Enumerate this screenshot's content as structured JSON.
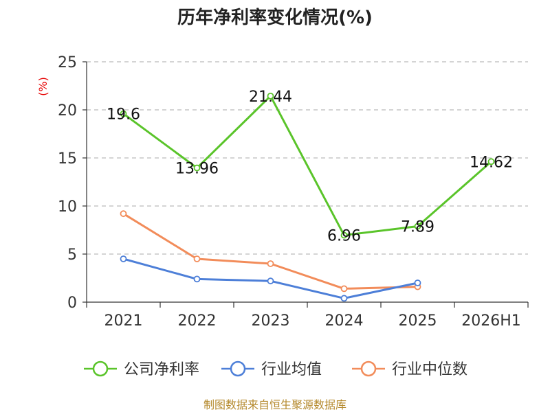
{
  "source": "制图数据来自恒生聚源数据库",
  "chart_data": {
    "type": "line",
    "title": "历年净利率变化情况(%)",
    "ylabel": "(%)",
    "xlabel": "",
    "categories": [
      "2021",
      "2022",
      "2023",
      "2024",
      "2025",
      "2026H1"
    ],
    "ylim": [
      0,
      25
    ],
    "yticks": [
      "0",
      "5",
      "10",
      "15",
      "20",
      "25"
    ],
    "grid": true,
    "legend_position": "bottom",
    "series": [
      {
        "name": "公司净利率",
        "color": "#5ac42a",
        "values": [
          19.6,
          13.96,
          21.44,
          6.96,
          7.89,
          14.62
        ],
        "labels": [
          "19.6",
          "13.96",
          "21.44",
          "6.96",
          "7.89",
          "14.62"
        ]
      },
      {
        "name": "行业均值",
        "color": "#4d7fd8",
        "values": [
          4.5,
          2.4,
          2.2,
          0.4,
          2.0,
          null
        ]
      },
      {
        "name": "行业中位数",
        "color": "#f28c5a",
        "values": [
          9.2,
          4.5,
          4.0,
          1.4,
          1.6,
          null
        ]
      }
    ]
  }
}
